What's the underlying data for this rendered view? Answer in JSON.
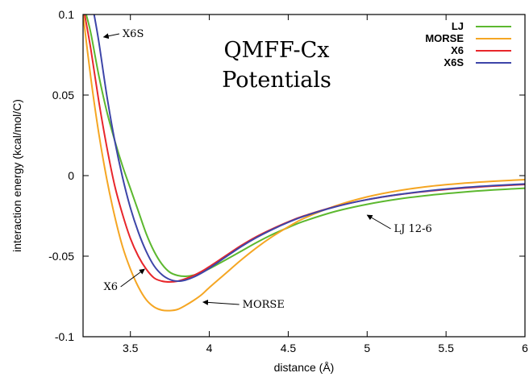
{
  "chart_data": {
    "type": "line",
    "title": [
      "QMFF-Cx",
      "Potentials"
    ],
    "xlabel": "distance (Å)",
    "ylabel": "interaction energy (kcal/mol/C)",
    "xlim": [
      3.2,
      6.0
    ],
    "ylim": [
      -0.1,
      0.1
    ],
    "xticks": [
      {
        "v": 3.5,
        "label": "3.5"
      },
      {
        "v": 4.0,
        "label": "4"
      },
      {
        "v": 4.5,
        "label": "4.5"
      },
      {
        "v": 5.0,
        "label": "5"
      },
      {
        "v": 5.5,
        "label": "5.5"
      },
      {
        "v": 6.0,
        "label": "6"
      }
    ],
    "yticks": [
      {
        "v": -0.1,
        "label": "-0.1"
      },
      {
        "v": -0.05,
        "label": "-0.05"
      },
      {
        "v": 0.0,
        "label": "0"
      },
      {
        "v": 0.05,
        "label": "0.05"
      },
      {
        "v": 0.1,
        "label": "0.1"
      }
    ],
    "grid": false,
    "legend_position": "top-right",
    "series": [
      {
        "name": "LJ",
        "color": "#5cb82f",
        "x": [
          3.22,
          3.25,
          3.3,
          3.35,
          3.4,
          3.45,
          3.5,
          3.55,
          3.6,
          3.65,
          3.7,
          3.75,
          3.8,
          3.85,
          3.9,
          3.95,
          4.0,
          4.1,
          4.2,
          4.3,
          4.4,
          4.5,
          4.6,
          4.8,
          5.0,
          5.2,
          5.4,
          5.6,
          5.8,
          6.0
        ],
        "y": [
          0.1,
          0.088,
          0.062,
          0.04,
          0.022,
          0.006,
          -0.008,
          -0.022,
          -0.036,
          -0.047,
          -0.055,
          -0.06,
          -0.062,
          -0.0625,
          -0.0618,
          -0.06,
          -0.0578,
          -0.0525,
          -0.047,
          -0.0415,
          -0.0365,
          -0.0322,
          -0.0283,
          -0.0222,
          -0.0178,
          -0.0145,
          -0.0121,
          -0.0103,
          -0.0089,
          -0.0078
        ]
      },
      {
        "name": "MORSE",
        "color": "#f5a623",
        "x": [
          3.2,
          3.25,
          3.3,
          3.35,
          3.4,
          3.45,
          3.5,
          3.55,
          3.6,
          3.65,
          3.7,
          3.75,
          3.8,
          3.85,
          3.9,
          3.95,
          4.0,
          4.1,
          4.2,
          4.3,
          4.4,
          4.5,
          4.6,
          4.8,
          5.0,
          5.2,
          5.4,
          5.6,
          5.8,
          6.0
        ],
        "y": [
          0.1,
          0.06,
          0.026,
          -0.002,
          -0.025,
          -0.044,
          -0.058,
          -0.069,
          -0.077,
          -0.0815,
          -0.0835,
          -0.0838,
          -0.083,
          -0.0805,
          -0.0775,
          -0.074,
          -0.0695,
          -0.061,
          -0.0525,
          -0.0447,
          -0.0378,
          -0.0318,
          -0.0265,
          -0.0188,
          -0.0132,
          -0.0093,
          -0.0066,
          -0.0048,
          -0.0035,
          -0.0025
        ]
      },
      {
        "name": "X6",
        "color": "#e8262b",
        "x": [
          3.21,
          3.25,
          3.3,
          3.35,
          3.4,
          3.45,
          3.5,
          3.55,
          3.6,
          3.65,
          3.7,
          3.75,
          3.8,
          3.85,
          3.9,
          3.95,
          4.0,
          4.1,
          4.2,
          4.3,
          4.4,
          4.5,
          4.6,
          4.8,
          5.0,
          5.2,
          5.4,
          5.6,
          5.8,
          6.0
        ],
        "y": [
          0.1,
          0.078,
          0.046,
          0.018,
          -0.006,
          -0.024,
          -0.039,
          -0.05,
          -0.058,
          -0.0635,
          -0.0655,
          -0.066,
          -0.0655,
          -0.064,
          -0.062,
          -0.0595,
          -0.0565,
          -0.05,
          -0.0435,
          -0.0378,
          -0.033,
          -0.0287,
          -0.025,
          -0.0192,
          -0.0149,
          -0.0118,
          -0.0095,
          -0.0078,
          -0.0065,
          -0.0055
        ]
      },
      {
        "name": "X6S",
        "color": "#3d45a8",
        "x": [
          3.27,
          3.3,
          3.35,
          3.4,
          3.45,
          3.5,
          3.55,
          3.6,
          3.65,
          3.7,
          3.75,
          3.8,
          3.85,
          3.9,
          3.95,
          4.0,
          4.1,
          4.2,
          4.3,
          4.4,
          4.5,
          4.6,
          4.8,
          5.0,
          5.2,
          5.4,
          5.6,
          5.8,
          6.0
        ],
        "y": [
          0.1,
          0.083,
          0.05,
          0.022,
          -0.001,
          -0.02,
          -0.035,
          -0.047,
          -0.056,
          -0.0615,
          -0.0645,
          -0.0655,
          -0.0648,
          -0.063,
          -0.0605,
          -0.0575,
          -0.0508,
          -0.0442,
          -0.0384,
          -0.0334,
          -0.029,
          -0.0252,
          -0.0193,
          -0.0149,
          -0.0117,
          -0.0093,
          -0.0075,
          -0.0062,
          -0.0052
        ]
      }
    ],
    "annotations": [
      {
        "text": "X6S",
        "label_x": 3.45,
        "label_y": 0.086,
        "arrow_to": [
          3.33,
          0.086
        ]
      },
      {
        "text": "LJ 12-6",
        "label_x": 5.17,
        "label_y": -0.035,
        "arrow_to": [
          5.0,
          -0.0245
        ]
      },
      {
        "text": "X6",
        "label_x": 3.33,
        "label_y": -0.071,
        "arrow_to": [
          3.59,
          -0.058
        ]
      },
      {
        "text": "MORSE",
        "label_x": 4.21,
        "label_y": -0.082,
        "arrow_to": [
          3.96,
          -0.0785
        ]
      }
    ]
  }
}
